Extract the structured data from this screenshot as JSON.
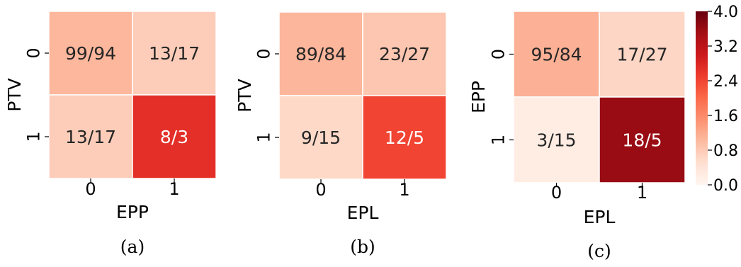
{
  "chart_data": [
    {
      "type": "heatmap",
      "caption": "(a)",
      "xlabel": "EPP",
      "ylabel": "PTV",
      "x_categories": [
        "0",
        "1"
      ],
      "y_categories": [
        "0",
        "1"
      ],
      "cell_labels": [
        [
          "99/94",
          "13/17"
        ],
        [
          "13/17",
          "8/3"
        ]
      ],
      "values": [
        [
          1.05,
          0.76
        ],
        [
          0.76,
          2.67
        ]
      ]
    },
    {
      "type": "heatmap",
      "caption": "(b)",
      "xlabel": "EPL",
      "ylabel": "PTV",
      "x_categories": [
        "0",
        "1"
      ],
      "y_categories": [
        "0",
        "1"
      ],
      "cell_labels": [
        [
          "89/84",
          "23/27"
        ],
        [
          "9/15",
          "12/5"
        ]
      ],
      "values": [
        [
          1.06,
          0.85
        ],
        [
          0.6,
          2.4
        ]
      ]
    },
    {
      "type": "heatmap",
      "caption": "(c)",
      "xlabel": "EPL",
      "ylabel": "EPP",
      "x_categories": [
        "0",
        "1"
      ],
      "y_categories": [
        "0",
        "1"
      ],
      "cell_labels": [
        [
          "95/84",
          "17/27"
        ],
        [
          "3/15",
          "18/5"
        ]
      ],
      "values": [
        [
          1.13,
          0.63
        ],
        [
          0.2,
          3.6
        ]
      ],
      "colorbar": {
        "ticks": [
          "0.0",
          "0.8",
          "1.6",
          "2.4",
          "3.2",
          "4.0"
        ],
        "range": [
          0,
          4
        ],
        "colormap": "Reds"
      }
    }
  ]
}
